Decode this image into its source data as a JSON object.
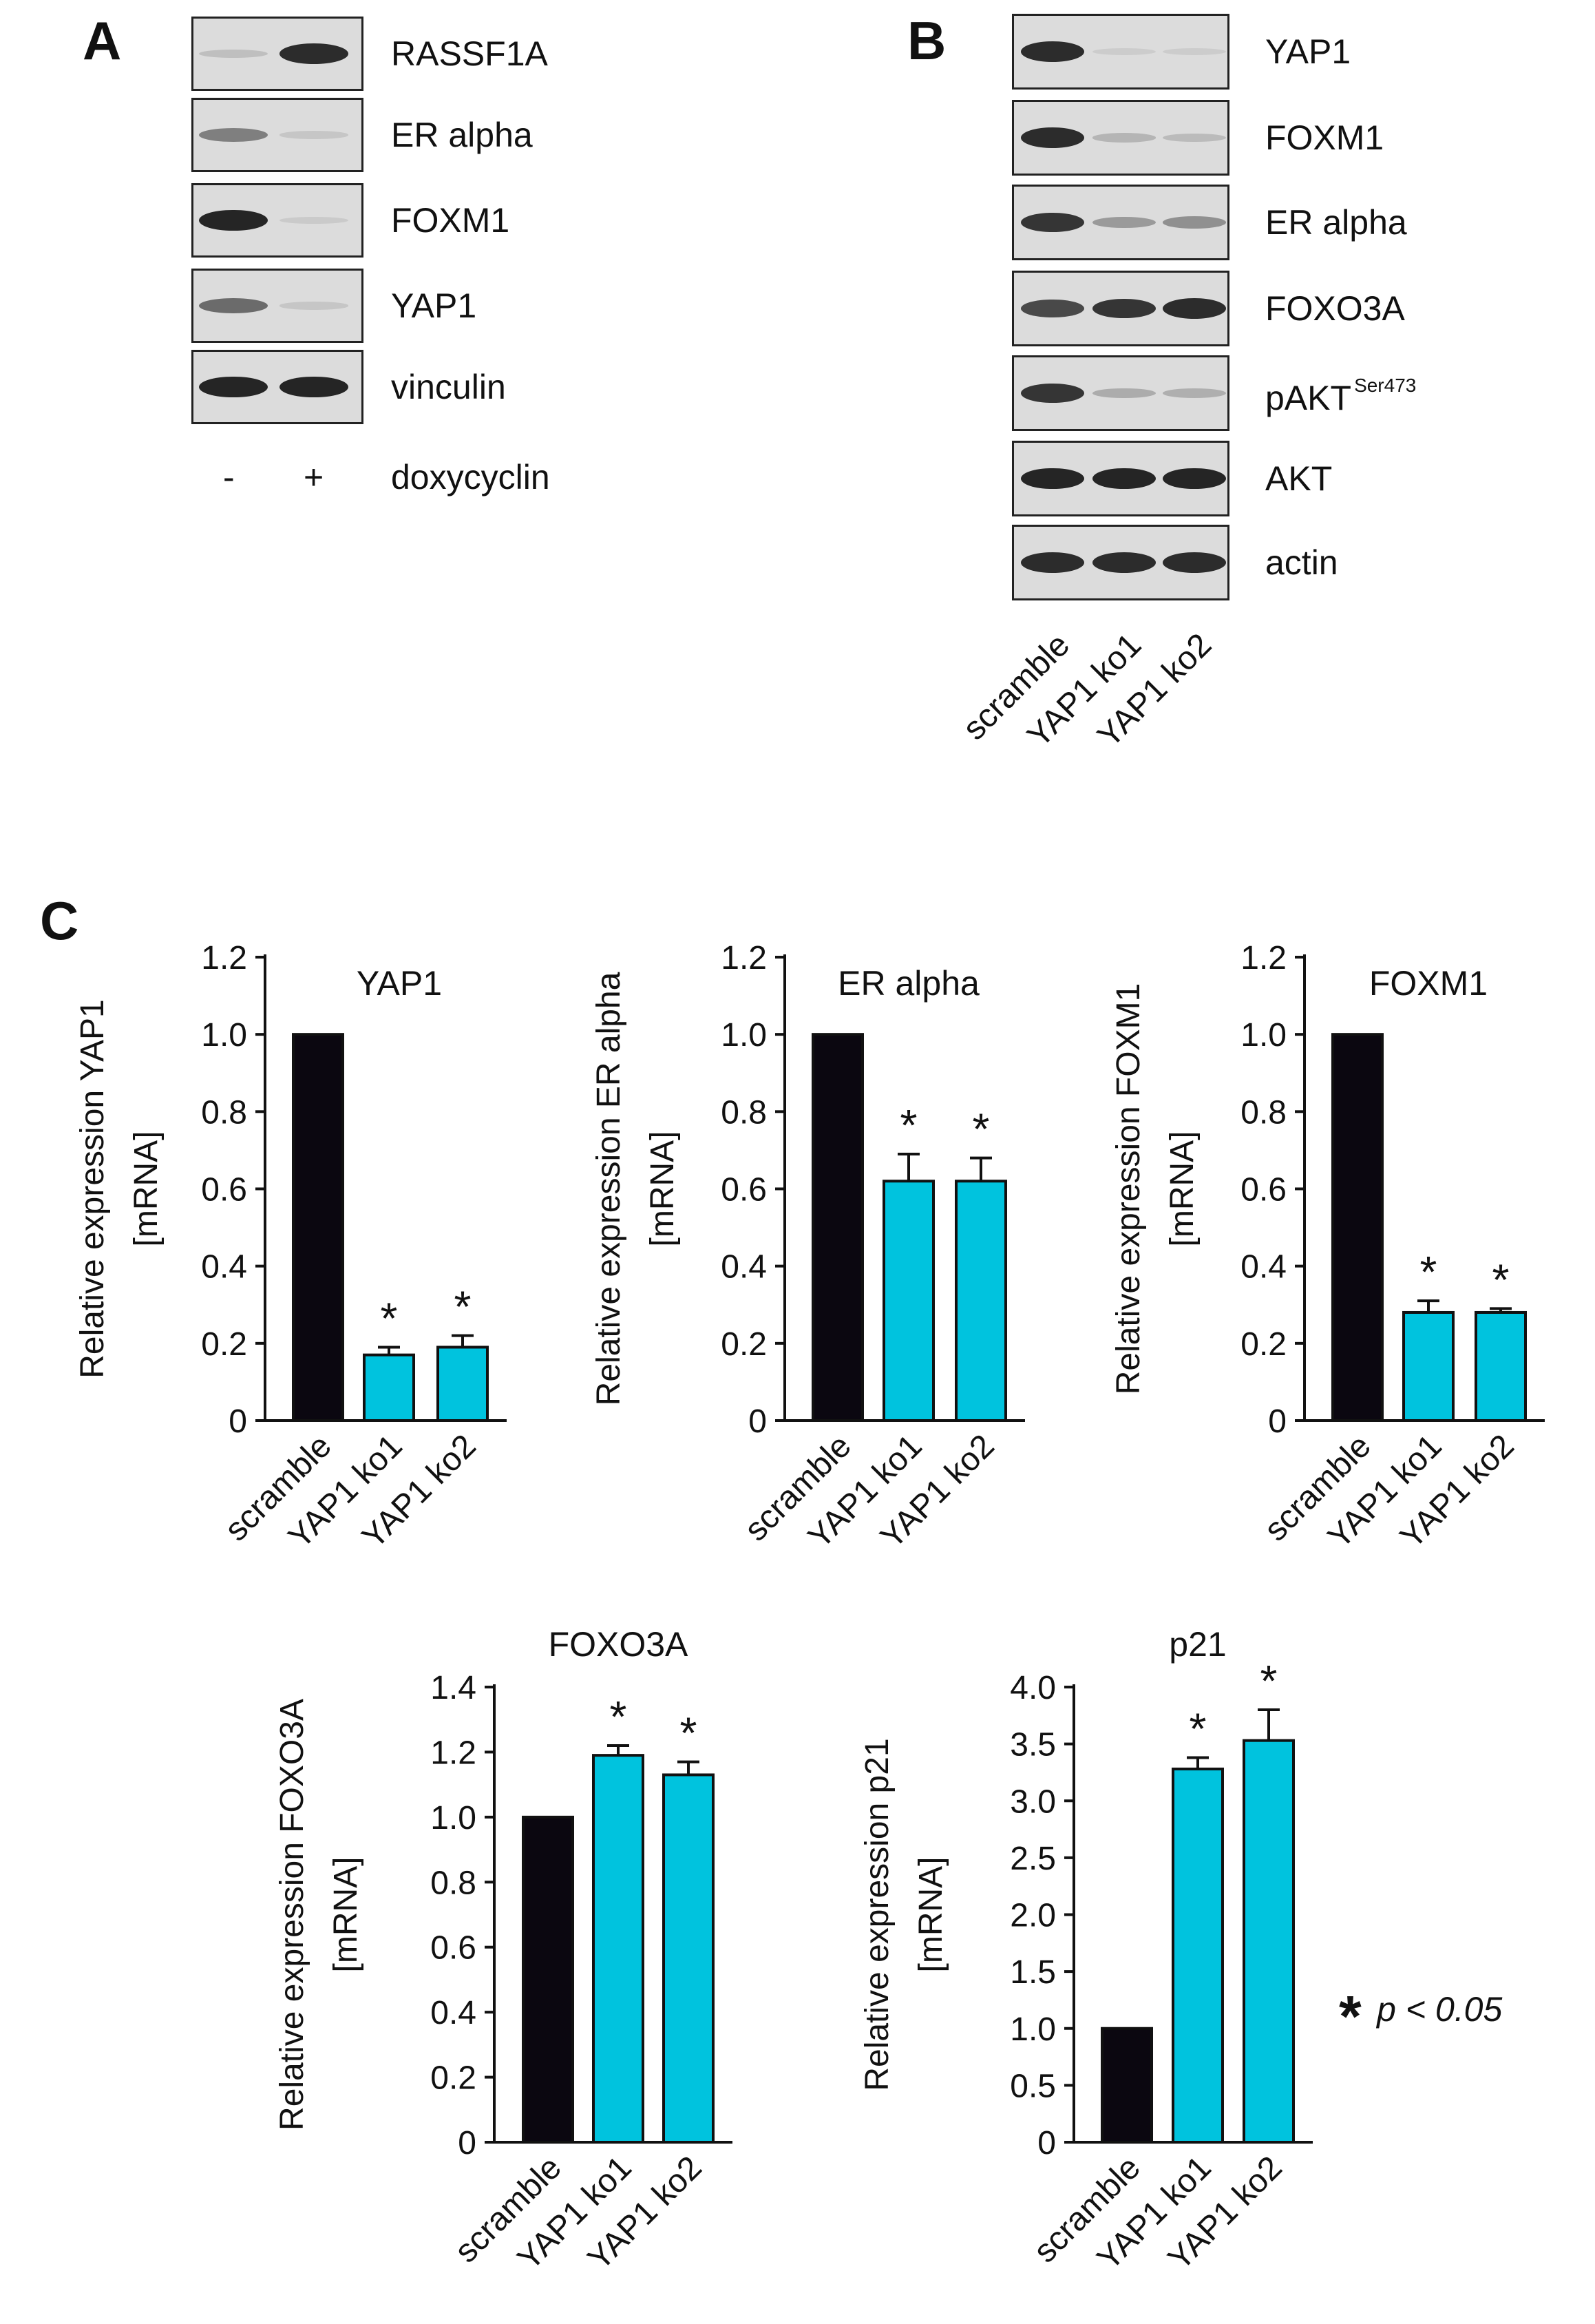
{
  "panels": {
    "a": "A",
    "b": "B",
    "c": "C"
  },
  "panel_a": {
    "blots": [
      {
        "label": "RASSF1A",
        "bands": [
          0.1,
          0.9
        ]
      },
      {
        "label": "ER alpha",
        "bands": [
          0.45,
          0.05
        ]
      },
      {
        "label": "FOXM1",
        "bands": [
          0.95,
          0.03
        ]
      },
      {
        "label": "YAP1",
        "bands": [
          0.55,
          0.05
        ]
      },
      {
        "label": "vinculin",
        "bands": [
          0.95,
          0.95
        ]
      }
    ],
    "lanes": [
      "-",
      "+"
    ],
    "treatment_label": "doxycyclin"
  },
  "panel_b": {
    "blots": [
      {
        "label": "YAP1",
        "sup": "",
        "bands": [
          0.9,
          0.02,
          0.02
        ]
      },
      {
        "label": "FOXM1",
        "sup": "",
        "bands": [
          0.9,
          0.15,
          0.12
        ]
      },
      {
        "label": "ER alpha",
        "sup": "",
        "bands": [
          0.85,
          0.3,
          0.35
        ]
      },
      {
        "label": "FOXO3A",
        "sup": "",
        "bands": [
          0.75,
          0.85,
          0.9
        ]
      },
      {
        "label": "pAKT",
        "sup": "Ser473",
        "bands": [
          0.85,
          0.2,
          0.18
        ]
      },
      {
        "label": "AKT",
        "sup": "",
        "bands": [
          0.95,
          0.95,
          0.95
        ]
      },
      {
        "label": "actin",
        "sup": "",
        "bands": [
          0.9,
          0.9,
          0.9
        ]
      }
    ],
    "lanes": [
      "scramble",
      "YAP1 ko1",
      "YAP1 ko2"
    ]
  },
  "colors": {
    "scramble": "#0b0710",
    "knockout": "#00c3de"
  },
  "significance": {
    "star": "*",
    "label": "p < 0.05"
  },
  "chart_data": [
    {
      "type": "bar",
      "title": "YAP1",
      "categories": [
        "scramble",
        "YAP1 ko1",
        "YAP1 ko2"
      ],
      "values": [
        1.0,
        0.17,
        0.19
      ],
      "errors": [
        0,
        0.02,
        0.03
      ],
      "significant": [
        false,
        true,
        true
      ],
      "ylabel": "Relative expression YAP1",
      "ylabel2": "[mRNA]",
      "ylim": [
        0,
        1.2
      ],
      "yticks": [
        "0",
        "0.2",
        "0.4",
        "0.6",
        "0.8",
        "1.0",
        "1.2"
      ]
    },
    {
      "type": "bar",
      "title": "ER alpha",
      "categories": [
        "scramble",
        "YAP1 ko1",
        "YAP1 ko2"
      ],
      "values": [
        1.0,
        0.62,
        0.62
      ],
      "errors": [
        0,
        0.07,
        0.06
      ],
      "significant": [
        false,
        true,
        true
      ],
      "ylabel": "Relative expression ER alpha",
      "ylabel2": "[mRNA]",
      "ylim": [
        0,
        1.2
      ],
      "yticks": [
        "0",
        "0.2",
        "0.4",
        "0.6",
        "0.8",
        "1.0",
        "1.2"
      ]
    },
    {
      "type": "bar",
      "title": "FOXM1",
      "categories": [
        "scramble",
        "YAP1 ko1",
        "YAP1 ko2"
      ],
      "values": [
        1.0,
        0.28,
        0.28
      ],
      "errors": [
        0,
        0.03,
        0.01
      ],
      "significant": [
        false,
        true,
        true
      ],
      "ylabel": "Relative expression FOXM1",
      "ylabel2": "[mRNA]",
      "ylim": [
        0,
        1.2
      ],
      "yticks": [
        "0",
        "0.2",
        "0.4",
        "0.6",
        "0.8",
        "1.0",
        "1.2"
      ]
    },
    {
      "type": "bar",
      "title": "FOXO3A",
      "categories": [
        "scramble",
        "YAP1 ko1",
        "YAP1 ko2"
      ],
      "values": [
        1.0,
        1.19,
        1.13
      ],
      "errors": [
        0,
        0.03,
        0.04
      ],
      "significant": [
        false,
        true,
        true
      ],
      "ylabel": "Relative expression FOXO3A",
      "ylabel2": "[mRNA]",
      "ylim": [
        0,
        1.4
      ],
      "yticks": [
        "0",
        "0.2",
        "0.4",
        "0.6",
        "0.8",
        "1.0",
        "1.2",
        "1.4"
      ]
    },
    {
      "type": "bar",
      "title": "p21",
      "categories": [
        "scramble",
        "YAP1 ko1",
        "YAP1 ko2"
      ],
      "values": [
        1.0,
        3.28,
        3.53
      ],
      "errors": [
        0,
        0.1,
        0.27
      ],
      "significant": [
        false,
        true,
        true
      ],
      "ylabel": "Relative expression p21",
      "ylabel2": "[mRNA]",
      "ylim": [
        0,
        4.0
      ],
      "yticks": [
        "0",
        "0.5",
        "1.0",
        "1.5",
        "2.0",
        "2.5",
        "3.0",
        "3.5",
        "4.0"
      ]
    }
  ]
}
